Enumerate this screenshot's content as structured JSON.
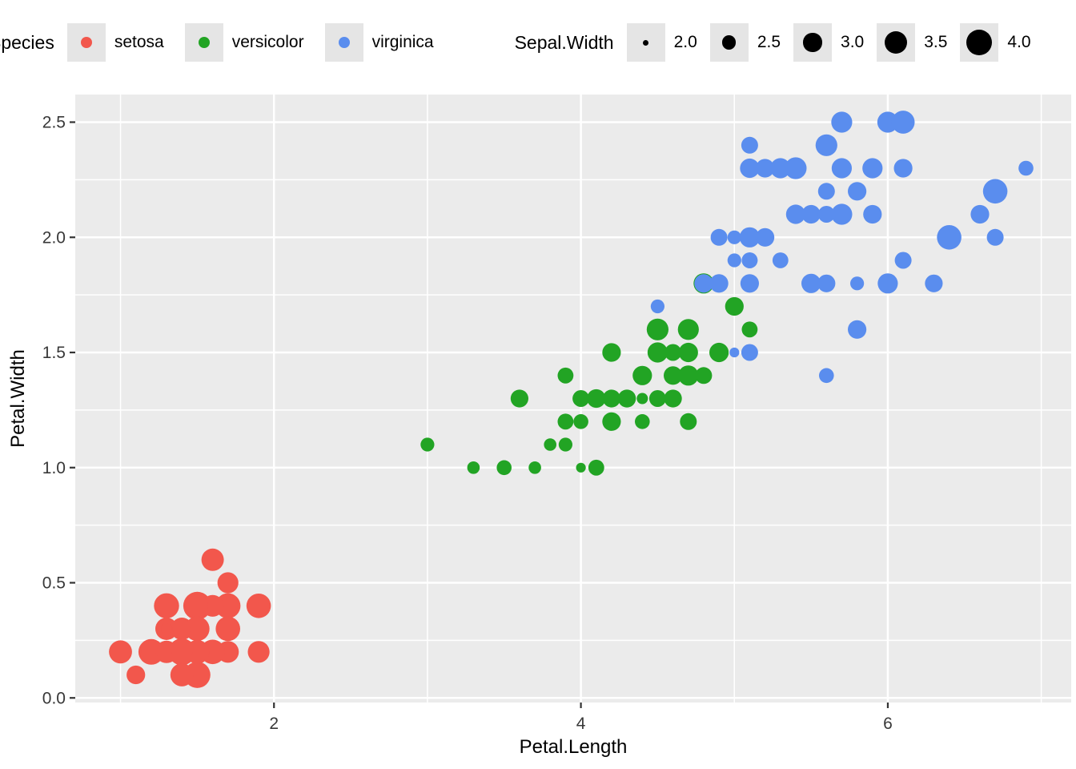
{
  "legend_species": {
    "title": "Species",
    "items": [
      {
        "label": "setosa",
        "color": "#F2574C"
      },
      {
        "label": "versicolor",
        "color": "#22A424"
      },
      {
        "label": "virginica",
        "color": "#5A8DEE"
      }
    ]
  },
  "legend_size": {
    "title": "Sepal.Width",
    "items": [
      {
        "label": "2.0",
        "value": 2.0
      },
      {
        "label": "2.5",
        "value": 2.5
      },
      {
        "label": "3.0",
        "value": 3.0
      },
      {
        "label": "3.5",
        "value": 3.5
      },
      {
        "label": "4.0",
        "value": 4.0
      }
    ],
    "circle_color": "#000000"
  },
  "colors": {
    "setosa": "#F2574C",
    "versicolor": "#22A424",
    "virginica": "#5A8DEE",
    "panel_background": "#EBEBEB",
    "gridline": "#FFFFFF",
    "legend_key_background": "#E5E5E5",
    "tick_mark": "#333333",
    "tick_label": "#383838",
    "axis_title": "#000000"
  },
  "chart_data": {
    "type": "scatter",
    "xlabel": "Petal.Length",
    "ylabel": "Petal.Width",
    "x_ticks": [
      2,
      4,
      6
    ],
    "x_tick_labels": [
      "2",
      "4",
      "6"
    ],
    "x_minor": [
      1,
      3,
      5,
      7
    ],
    "y_ticks": [
      0.0,
      0.5,
      1.0,
      1.5,
      2.0,
      2.5
    ],
    "y_tick_labels": [
      "0.0",
      "0.5",
      "1.0",
      "1.5",
      "2.0",
      "2.5"
    ],
    "y_minor": [
      0.25,
      0.75,
      1.25,
      1.75,
      2.25
    ],
    "xlim": [
      0.705,
      7.195
    ],
    "ylim": [
      -0.02,
      2.62
    ],
    "size_variable": "Sepal.Width",
    "size_domain": [
      2.0,
      4.4
    ],
    "point_format": [
      "Petal.Length",
      "Petal.Width",
      "Sepal.Width"
    ],
    "series": [
      {
        "name": "setosa",
        "color": "#F2574C",
        "points": [
          [
            1.4,
            0.2,
            3.5
          ],
          [
            1.4,
            0.2,
            3.0
          ],
          [
            1.3,
            0.2,
            3.2
          ],
          [
            1.5,
            0.2,
            3.1
          ],
          [
            1.4,
            0.2,
            3.6
          ],
          [
            1.7,
            0.4,
            3.9
          ],
          [
            1.4,
            0.3,
            3.4
          ],
          [
            1.5,
            0.2,
            3.4
          ],
          [
            1.4,
            0.2,
            2.9
          ],
          [
            1.5,
            0.1,
            3.1
          ],
          [
            1.5,
            0.2,
            3.7
          ],
          [
            1.6,
            0.2,
            3.4
          ],
          [
            1.4,
            0.1,
            3.0
          ],
          [
            1.1,
            0.1,
            3.0
          ],
          [
            1.2,
            0.2,
            4.0
          ],
          [
            1.5,
            0.4,
            4.4
          ],
          [
            1.3,
            0.4,
            3.9
          ],
          [
            1.4,
            0.3,
            3.5
          ],
          [
            1.7,
            0.3,
            3.8
          ],
          [
            1.5,
            0.3,
            3.8
          ],
          [
            1.7,
            0.2,
            3.4
          ],
          [
            1.5,
            0.4,
            3.7
          ],
          [
            1.0,
            0.2,
            3.6
          ],
          [
            1.7,
            0.5,
            3.3
          ],
          [
            1.9,
            0.2,
            3.4
          ],
          [
            1.6,
            0.2,
            3.0
          ],
          [
            1.6,
            0.4,
            3.4
          ],
          [
            1.5,
            0.2,
            3.5
          ],
          [
            1.4,
            0.2,
            3.4
          ],
          [
            1.6,
            0.2,
            3.2
          ],
          [
            1.6,
            0.2,
            3.1
          ],
          [
            1.5,
            0.4,
            3.4
          ],
          [
            1.5,
            0.1,
            4.1
          ],
          [
            1.4,
            0.2,
            4.2
          ],
          [
            1.5,
            0.2,
            3.1
          ],
          [
            1.2,
            0.2,
            3.2
          ],
          [
            1.3,
            0.2,
            3.5
          ],
          [
            1.4,
            0.1,
            3.6
          ],
          [
            1.3,
            0.2,
            3.0
          ],
          [
            1.5,
            0.2,
            3.4
          ],
          [
            1.3,
            0.3,
            3.5
          ],
          [
            1.3,
            0.3,
            2.3
          ],
          [
            1.3,
            0.2,
            3.2
          ],
          [
            1.6,
            0.6,
            3.5
          ],
          [
            1.9,
            0.4,
            3.8
          ],
          [
            1.4,
            0.3,
            3.0
          ],
          [
            1.6,
            0.2,
            3.8
          ],
          [
            1.4,
            0.2,
            3.2
          ],
          [
            1.5,
            0.2,
            3.7
          ],
          [
            1.4,
            0.2,
            3.3
          ]
        ]
      },
      {
        "name": "versicolor",
        "color": "#22A424",
        "points": [
          [
            4.7,
            1.4,
            3.2
          ],
          [
            4.5,
            1.5,
            3.2
          ],
          [
            4.9,
            1.5,
            3.1
          ],
          [
            4.0,
            1.3,
            2.3
          ],
          [
            4.6,
            1.5,
            2.8
          ],
          [
            4.5,
            1.3,
            2.8
          ],
          [
            4.7,
            1.6,
            3.3
          ],
          [
            3.3,
            1.0,
            2.4
          ],
          [
            4.6,
            1.3,
            2.9
          ],
          [
            3.9,
            1.4,
            2.7
          ],
          [
            3.5,
            1.0,
            2.0
          ],
          [
            4.2,
            1.5,
            3.0
          ],
          [
            4.0,
            1.0,
            2.2
          ],
          [
            4.7,
            1.4,
            2.9
          ],
          [
            3.6,
            1.3,
            2.9
          ],
          [
            4.4,
            1.4,
            3.1
          ],
          [
            4.5,
            1.5,
            3.0
          ],
          [
            4.1,
            1.0,
            2.7
          ],
          [
            4.5,
            1.5,
            2.2
          ],
          [
            3.9,
            1.1,
            2.5
          ],
          [
            4.8,
            1.8,
            3.2
          ],
          [
            4.0,
            1.3,
            2.8
          ],
          [
            4.9,
            1.5,
            2.5
          ],
          [
            4.7,
            1.2,
            2.8
          ],
          [
            4.3,
            1.3,
            2.9
          ],
          [
            4.4,
            1.4,
            3.0
          ],
          [
            4.8,
            1.4,
            2.8
          ],
          [
            5.0,
            1.7,
            3.0
          ],
          [
            4.5,
            1.5,
            2.9
          ],
          [
            3.5,
            1.0,
            2.6
          ],
          [
            3.8,
            1.1,
            2.4
          ],
          [
            3.7,
            1.0,
            2.4
          ],
          [
            3.9,
            1.2,
            2.7
          ],
          [
            5.1,
            1.6,
            2.7
          ],
          [
            4.5,
            1.5,
            3.0
          ],
          [
            4.5,
            1.6,
            3.4
          ],
          [
            4.7,
            1.5,
            3.1
          ],
          [
            4.4,
            1.3,
            2.3
          ],
          [
            4.1,
            1.3,
            3.0
          ],
          [
            4.0,
            1.3,
            2.5
          ],
          [
            4.4,
            1.2,
            2.6
          ],
          [
            4.6,
            1.4,
            3.0
          ],
          [
            4.0,
            1.2,
            2.6
          ],
          [
            3.3,
            1.0,
            2.3
          ],
          [
            4.2,
            1.3,
            2.7
          ],
          [
            4.2,
            1.2,
            3.0
          ],
          [
            4.2,
            1.3,
            2.9
          ],
          [
            4.3,
            1.3,
            2.9
          ],
          [
            3.0,
            1.1,
            2.5
          ],
          [
            4.1,
            1.3,
            2.8
          ]
        ]
      },
      {
        "name": "virginica",
        "color": "#5A8DEE",
        "points": [
          [
            6.0,
            2.5,
            3.3
          ],
          [
            5.1,
            1.9,
            2.7
          ],
          [
            5.9,
            2.1,
            3.0
          ],
          [
            5.6,
            1.8,
            2.9
          ],
          [
            5.8,
            2.2,
            3.0
          ],
          [
            6.6,
            2.1,
            3.0
          ],
          [
            4.5,
            1.7,
            2.5
          ],
          [
            6.3,
            1.8,
            2.9
          ],
          [
            5.8,
            1.8,
            2.5
          ],
          [
            6.1,
            2.5,
            3.6
          ],
          [
            5.1,
            2.0,
            3.2
          ],
          [
            5.3,
            1.9,
            2.7
          ],
          [
            5.5,
            2.1,
            3.0
          ],
          [
            5.0,
            2.0,
            2.5
          ],
          [
            5.1,
            2.4,
            2.8
          ],
          [
            5.3,
            2.3,
            3.2
          ],
          [
            5.5,
            1.8,
            3.0
          ],
          [
            6.7,
            2.2,
            3.8
          ],
          [
            6.9,
            2.3,
            2.6
          ],
          [
            5.0,
            1.5,
            2.2
          ],
          [
            5.7,
            2.3,
            3.2
          ],
          [
            4.9,
            2.0,
            2.8
          ],
          [
            6.7,
            2.0,
            2.8
          ],
          [
            4.9,
            1.8,
            2.7
          ],
          [
            5.7,
            2.1,
            3.3
          ],
          [
            6.0,
            1.8,
            3.2
          ],
          [
            4.8,
            1.8,
            2.8
          ],
          [
            4.9,
            1.8,
            3.0
          ],
          [
            5.6,
            2.1,
            2.8
          ],
          [
            5.8,
            1.6,
            3.0
          ],
          [
            6.1,
            1.9,
            2.8
          ],
          [
            6.4,
            2.0,
            3.8
          ],
          [
            5.6,
            2.2,
            2.8
          ],
          [
            5.1,
            1.5,
            2.8
          ],
          [
            5.6,
            1.4,
            2.6
          ],
          [
            6.1,
            2.3,
            3.0
          ],
          [
            5.6,
            2.4,
            3.4
          ],
          [
            5.5,
            1.8,
            3.1
          ],
          [
            4.8,
            1.8,
            3.0
          ],
          [
            5.4,
            2.1,
            3.1
          ],
          [
            5.6,
            2.4,
            3.1
          ],
          [
            5.1,
            2.3,
            3.1
          ],
          [
            5.1,
            1.9,
            2.7
          ],
          [
            5.9,
            2.3,
            3.2
          ],
          [
            5.7,
            2.5,
            3.3
          ],
          [
            5.2,
            2.3,
            3.0
          ],
          [
            5.0,
            1.9,
            2.5
          ],
          [
            5.2,
            2.0,
            3.0
          ],
          [
            5.4,
            2.3,
            3.4
          ],
          [
            5.1,
            1.8,
            3.0
          ]
        ]
      }
    ]
  }
}
